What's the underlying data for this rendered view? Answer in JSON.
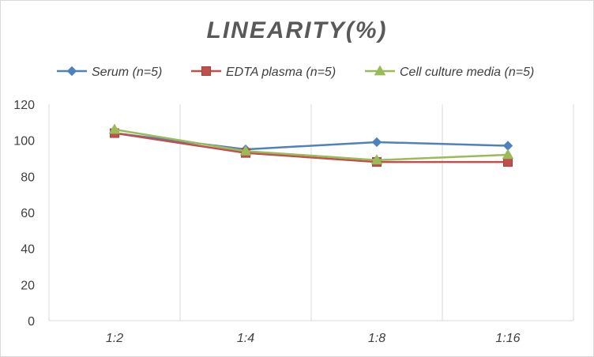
{
  "chart_data": {
    "type": "line",
    "title": "LINEARITY(%)",
    "categories": [
      "1:2",
      "1:4",
      "1:8",
      "1:16"
    ],
    "ylim": [
      0,
      120
    ],
    "yticks": [
      0,
      20,
      40,
      60,
      80,
      100,
      120
    ],
    "grid": "vertical",
    "legend_position": "top",
    "series": [
      {
        "name": "Serum (n=5)",
        "values": [
          104,
          95,
          99,
          97
        ],
        "color": "#4f81bd",
        "marker": "diamond"
      },
      {
        "name": "EDTA plasma (n=5)",
        "values": [
          104,
          93,
          88,
          88
        ],
        "color": "#c0504d",
        "marker": "square"
      },
      {
        "name": "Cell culture media (n=5)",
        "values": [
          106,
          94,
          89,
          92
        ],
        "color": "#9bbb59",
        "marker": "triangle"
      }
    ]
  }
}
